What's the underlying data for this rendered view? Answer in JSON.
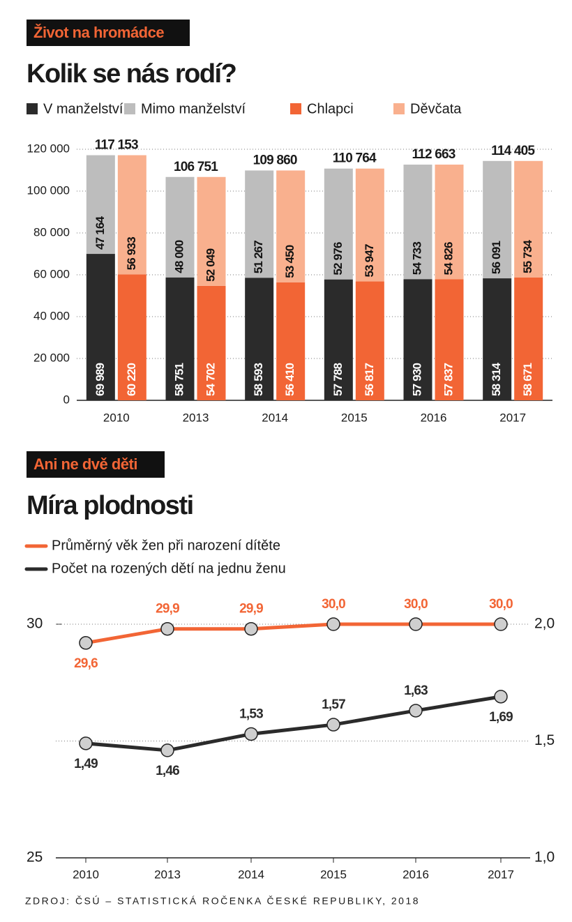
{
  "chart_data": [
    {
      "type": "bar",
      "kicker": "Život na hromádce",
      "title": "Kolik se nás rodí?",
      "categories": [
        "2010",
        "2013",
        "2014",
        "2015",
        "2016",
        "2017"
      ],
      "series": [
        {
          "name": "V manželství",
          "color": "#2b2b2b",
          "stack": "a",
          "values": [
            69989,
            58751,
            58593,
            57788,
            57930,
            58314
          ],
          "value_labels": [
            "69 989",
            "58 751",
            "58 593",
            "57 788",
            "57 930",
            "58 314"
          ]
        },
        {
          "name": "Mimo manželství",
          "color": "#bdbdbd",
          "stack": "a",
          "values": [
            47164,
            48000,
            51267,
            52976,
            54733,
            56091
          ],
          "value_labels": [
            "47 164",
            "48 000",
            "51 267",
            "52 976",
            "54 733",
            "56 091"
          ]
        },
        {
          "name": "Chlapci",
          "color": "#f26535",
          "stack": "b",
          "values": [
            60220,
            54702,
            56410,
            56817,
            57837,
            58671
          ],
          "value_labels": [
            "60 220",
            "54 702",
            "56 410",
            "56 817",
            "57 837",
            "58 671"
          ]
        },
        {
          "name": "Děvčata",
          "color": "#f9b08e",
          "stack": "b",
          "values": [
            56933,
            52049,
            53450,
            53947,
            54826,
            55734
          ],
          "value_labels": [
            "56 933",
            "52 049",
            "53 450",
            "53 947",
            "54 826",
            "55 734"
          ]
        }
      ],
      "totals": [
        117153,
        106751,
        109860,
        110764,
        112663,
        114405
      ],
      "totals_labels": [
        "117 153",
        "106 751",
        "109 860",
        "110 764",
        "112 663",
        "114 405"
      ],
      "ylim": [
        0,
        120000
      ],
      "yticks": [
        0,
        {
          "value": 20000,
          "label": "20 000"
        },
        {
          "value": 40000,
          "label": "40 000"
        },
        {
          "value": 60000,
          "label": "60 000"
        },
        {
          "value": 80000,
          "label": "80 000"
        },
        {
          "value": 100000,
          "label": "100 000"
        },
        {
          "value": 120000,
          "label": "120 000"
        }
      ],
      "grid": true
    },
    {
      "type": "line",
      "kicker": "Ani ne dvě děti",
      "title": "Míra plodnosti",
      "categories": [
        "2010",
        "2013",
        "2014",
        "2015",
        "2016",
        "2017"
      ],
      "series": [
        {
          "name": "Průměrný věk žen při narození dítěte",
          "color": "#f26535",
          "axis": "y",
          "values": [
            29.6,
            29.9,
            29.9,
            30.0,
            30.0,
            30.0
          ],
          "value_labels": [
            "29,6",
            "29,9",
            "29,9",
            "30,0",
            "30,0",
            "30,0"
          ]
        },
        {
          "name": "Počet na rozených dětí na jednu ženu",
          "color": "#2b2b2b",
          "axis": "y2",
          "values": [
            1.49,
            1.46,
            1.53,
            1.57,
            1.63,
            1.69
          ],
          "value_labels": [
            "1,49",
            "1,46",
            "1,53",
            "1,57",
            "1,63",
            "1,69"
          ]
        }
      ],
      "ylim": [
        25,
        30
      ],
      "yticks": [
        25,
        30
      ],
      "y2lim": [
        1,
        2
      ],
      "y2ticks": [
        {
          "value": 1,
          "label": "1,0"
        },
        {
          "value": 1.5,
          "label": "1,5"
        },
        {
          "value": 2,
          "label": "2,0"
        }
      ],
      "grid": true
    }
  ],
  "source": "ZDROJ: ČSÚ – STATISTICKÁ ROČENKA ČESKÉ REPUBLIKY, 2018"
}
